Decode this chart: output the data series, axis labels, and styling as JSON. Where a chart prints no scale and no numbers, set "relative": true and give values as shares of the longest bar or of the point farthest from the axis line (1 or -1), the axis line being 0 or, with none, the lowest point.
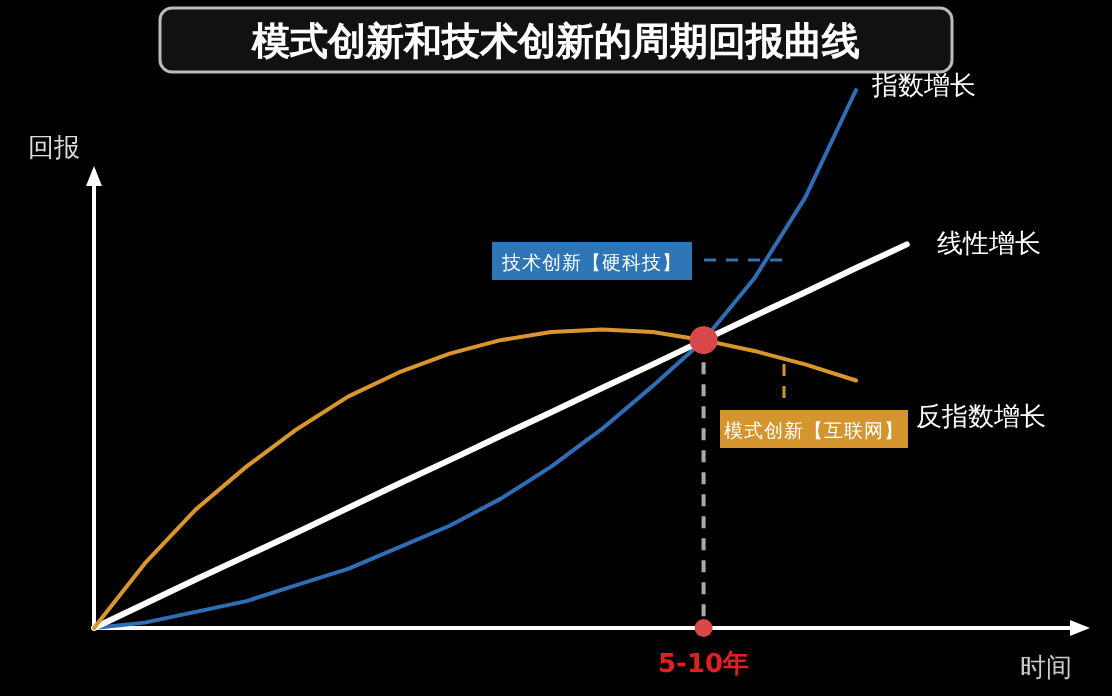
{
  "chart_data": {
    "type": "line",
    "relative": true,
    "title": "模式创新和技术创新的周期回报曲线",
    "xlabel": "时间",
    "ylabel": "回报",
    "categories": [
      null,
      null,
      null,
      null,
      null,
      null,
      null,
      null,
      null,
      null,
      null,
      null,
      null,
      null,
      null,
      null,
      null
    ],
    "series": [
      {
        "name": "指数增长",
        "color": "#2f6db5",
        "values": [
          0,
          0.01,
          0.03,
          0.05,
          0.08,
          0.11,
          0.15,
          0.19,
          0.24,
          0.3,
          0.37,
          0.45,
          0.535,
          0.65,
          0.8,
          1.0,
          null
        ]
      },
      {
        "name": "线性增长",
        "color": "#ffffff",
        "values": [
          0,
          0.045,
          0.09,
          0.134,
          0.178,
          0.223,
          0.268,
          0.312,
          0.357,
          0.401,
          0.446,
          0.49,
          0.535,
          0.58,
          0.624,
          0.669,
          0.713
        ]
      },
      {
        "name": "反指数增长",
        "color": "#d9962e",
        "values": [
          0,
          0.12,
          0.22,
          0.3,
          0.37,
          0.43,
          0.475,
          0.51,
          0.535,
          0.55,
          0.555,
          0.55,
          0.535,
          0.515,
          0.49,
          0.46,
          null
        ]
      }
    ],
    "annotations": [
      "技术创新【硬科技】",
      "模式创新【互联网】",
      "5-10年"
    ]
  }
}
